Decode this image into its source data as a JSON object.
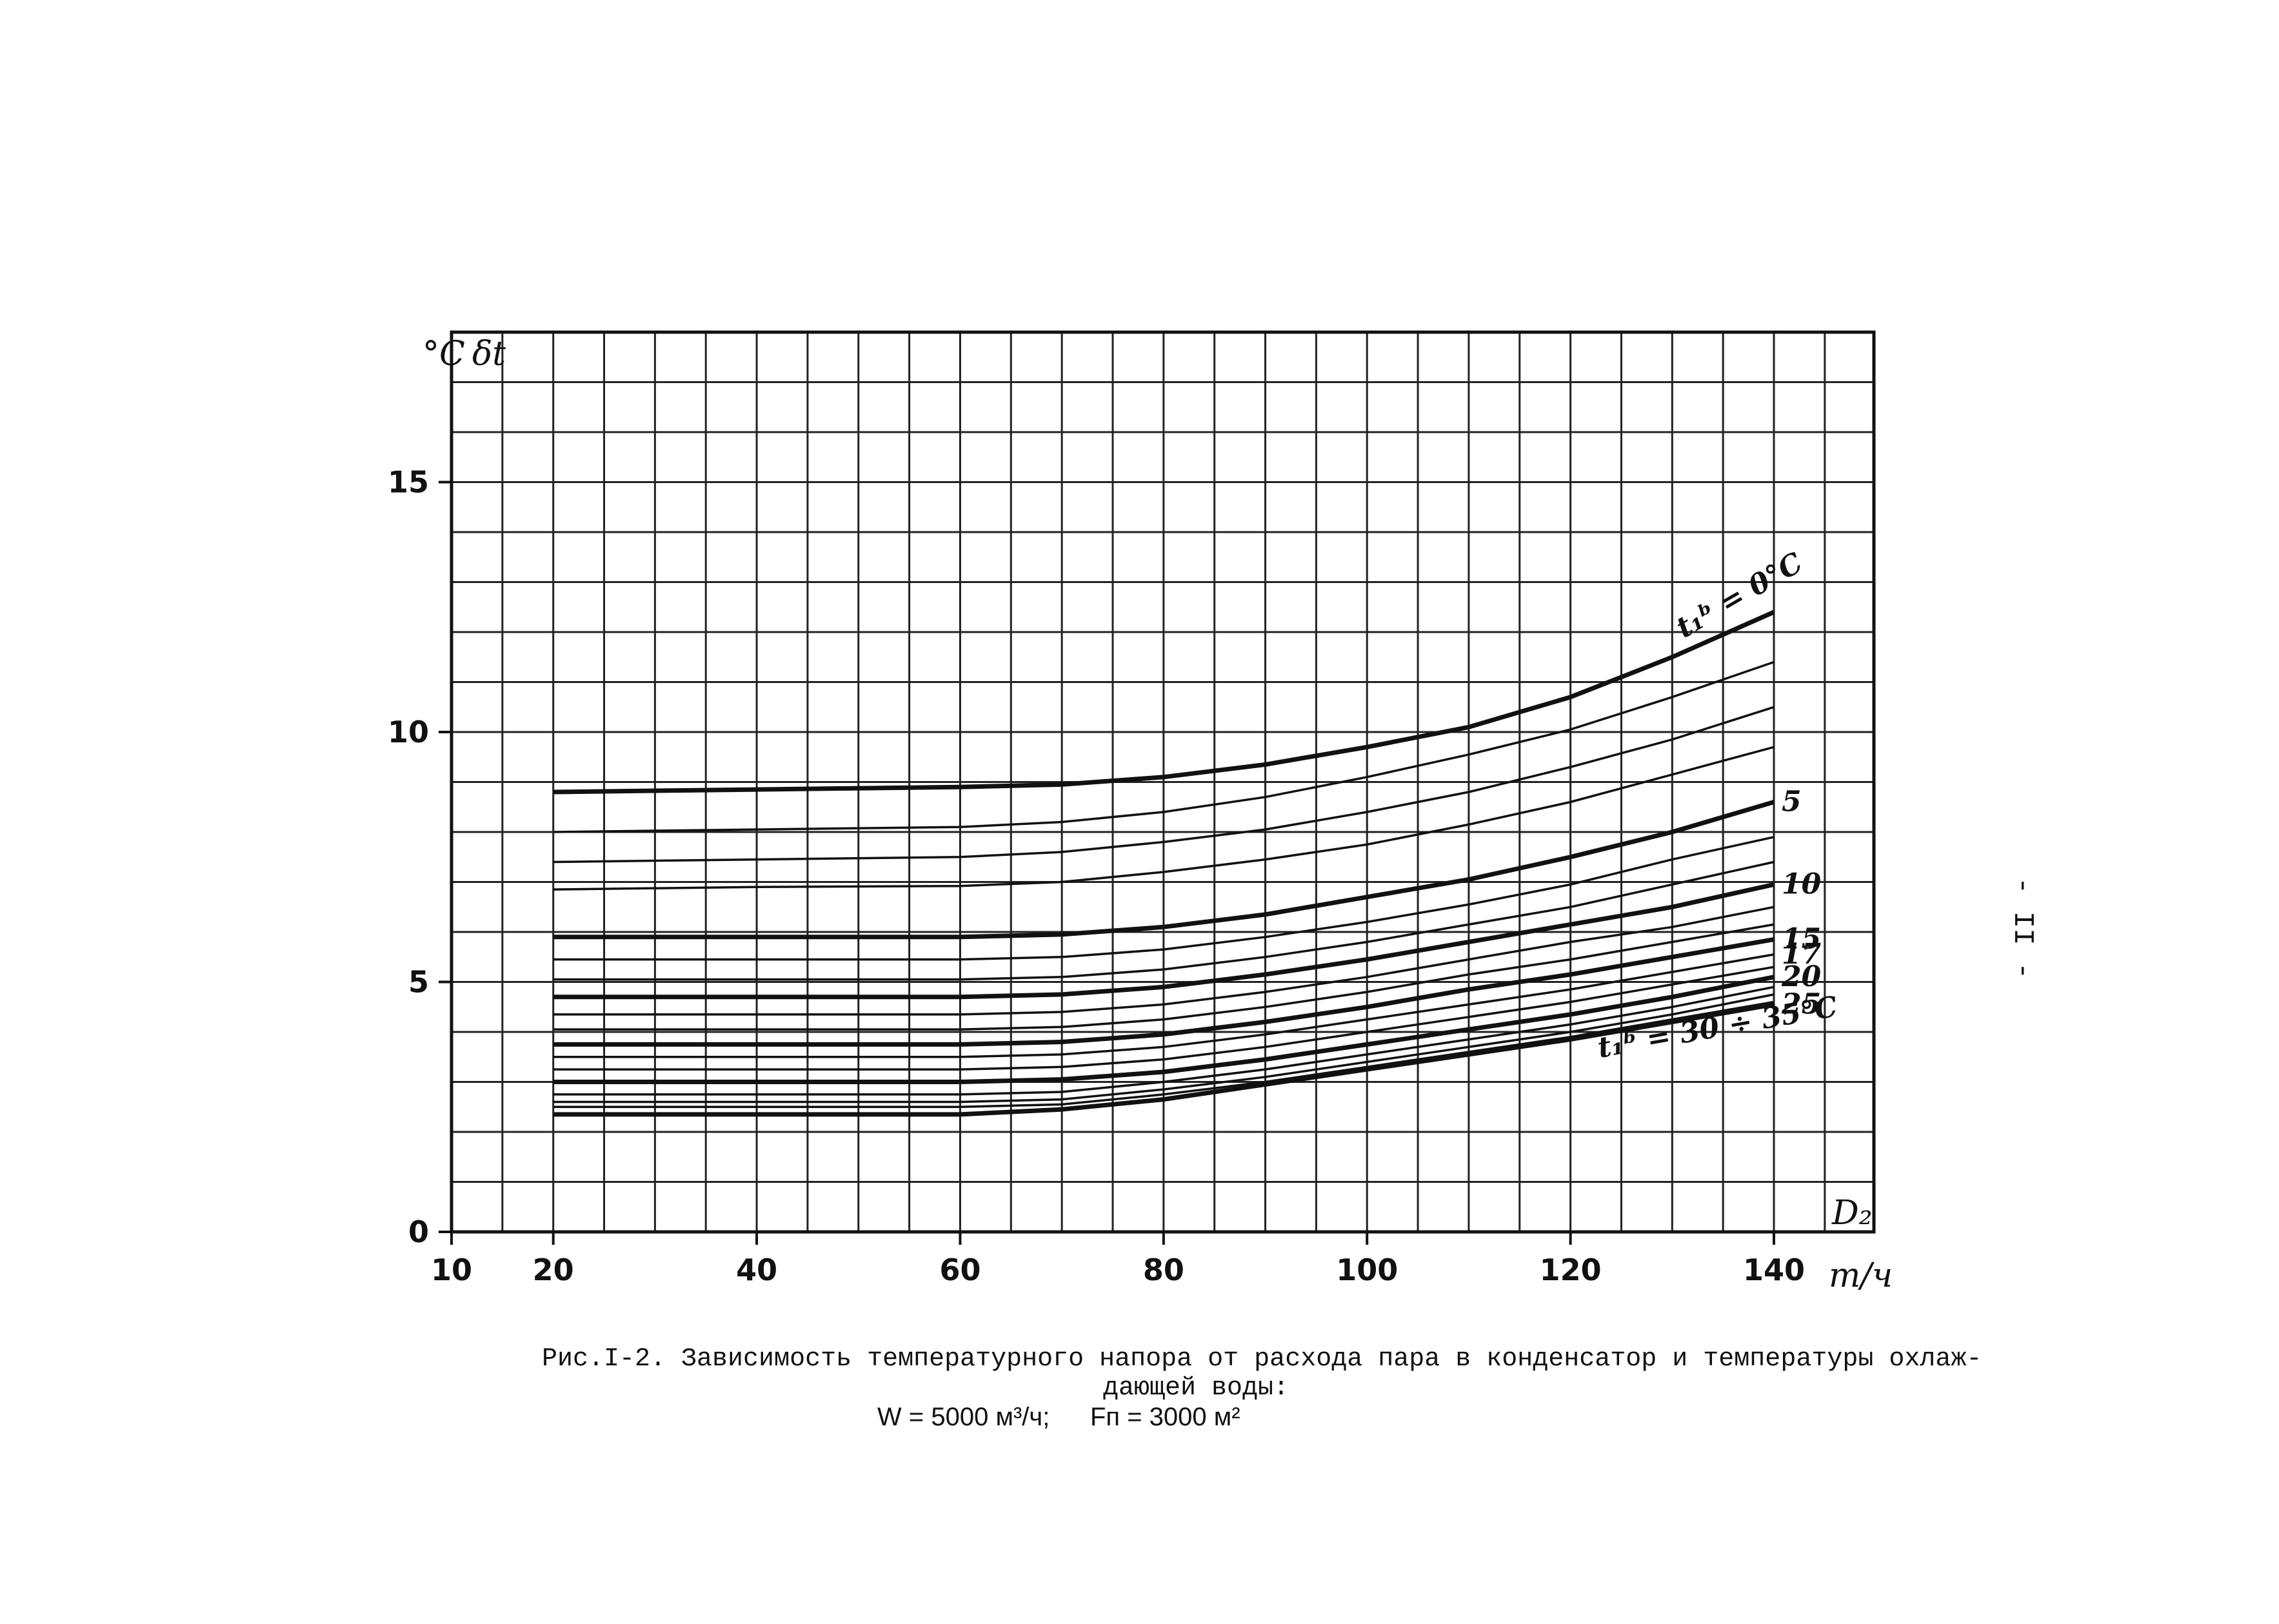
{
  "chart_data": {
    "type": "line",
    "y_unit": "°C",
    "ylabel": "δt",
    "xlabel": "D₂",
    "x_unit": "т/ч",
    "xlim": [
      10,
      140
    ],
    "ylim": [
      0,
      17.5
    ],
    "x_ticks": [
      10,
      20,
      40,
      60,
      80,
      100,
      120,
      140
    ],
    "y_ticks": [
      0,
      5,
      10,
      15
    ],
    "x_tick_labels": [
      "10",
      "20",
      "40",
      "60",
      "80",
      "100",
      "120",
      "140"
    ],
    "y_tick_labels": [
      "0",
      "5",
      "10",
      "15"
    ],
    "grid": true,
    "x": [
      20,
      40,
      60,
      70,
      80,
      90,
      100,
      110,
      120,
      130,
      140
    ],
    "series": [
      {
        "name": "t₁ᵇ = 0°C",
        "values": [
          8.8,
          8.85,
          8.9,
          8.95,
          9.1,
          9.35,
          9.7,
          10.1,
          10.7,
          11.5,
          12.4
        ],
        "bold": true
      },
      {
        "name": "",
        "values": [
          8.0,
          8.05,
          8.1,
          8.2,
          8.4,
          8.7,
          9.1,
          9.55,
          10.05,
          10.7,
          11.4
        ],
        "bold": false
      },
      {
        "name": "",
        "values": [
          7.4,
          7.45,
          7.5,
          7.6,
          7.8,
          8.05,
          8.4,
          8.8,
          9.3,
          9.85,
          10.5
        ],
        "bold": false
      },
      {
        "name": "",
        "values": [
          6.85,
          6.9,
          6.92,
          7.0,
          7.2,
          7.45,
          7.75,
          8.15,
          8.6,
          9.15,
          9.7
        ],
        "bold": false
      },
      {
        "name": "5",
        "values": [
          5.9,
          5.9,
          5.9,
          5.95,
          6.1,
          6.35,
          6.7,
          7.05,
          7.5,
          8.0,
          8.6
        ],
        "bold": true
      },
      {
        "name": "",
        "values": [
          5.45,
          5.45,
          5.45,
          5.5,
          5.65,
          5.9,
          6.2,
          6.55,
          6.95,
          7.45,
          7.9
        ],
        "bold": false
      },
      {
        "name": "",
        "values": [
          5.05,
          5.05,
          5.05,
          5.1,
          5.25,
          5.5,
          5.8,
          6.15,
          6.5,
          6.95,
          7.4
        ],
        "bold": false
      },
      {
        "name": "10",
        "values": [
          4.7,
          4.7,
          4.7,
          4.75,
          4.9,
          5.15,
          5.45,
          5.8,
          6.15,
          6.5,
          6.95
        ],
        "bold": true
      },
      {
        "name": "",
        "values": [
          4.35,
          4.35,
          4.35,
          4.4,
          4.55,
          4.8,
          5.1,
          5.45,
          5.8,
          6.1,
          6.5
        ],
        "bold": false
      },
      {
        "name": "",
        "values": [
          4.05,
          4.05,
          4.05,
          4.1,
          4.25,
          4.5,
          4.8,
          5.15,
          5.45,
          5.8,
          6.15
        ],
        "bold": false
      },
      {
        "name": "15",
        "values": [
          3.75,
          3.75,
          3.75,
          3.8,
          3.95,
          4.2,
          4.5,
          4.85,
          5.15,
          5.5,
          5.85
        ],
        "bold": true
      },
      {
        "name": "17",
        "values": [
          3.5,
          3.5,
          3.5,
          3.55,
          3.7,
          3.95,
          4.25,
          4.55,
          4.85,
          5.2,
          5.55
        ],
        "bold": false
      },
      {
        "name": "",
        "values": [
          3.25,
          3.25,
          3.25,
          3.3,
          3.45,
          3.7,
          4.0,
          4.3,
          4.6,
          4.95,
          5.3
        ],
        "bold": false
      },
      {
        "name": "20",
        "values": [
          3.0,
          3.0,
          3.0,
          3.05,
          3.2,
          3.45,
          3.75,
          4.05,
          4.35,
          4.7,
          5.1
        ],
        "bold": true
      },
      {
        "name": "",
        "values": [
          2.75,
          2.75,
          2.75,
          2.8,
          3.0,
          3.25,
          3.55,
          3.85,
          4.15,
          4.5,
          4.9
        ],
        "bold": false
      },
      {
        "name": "",
        "values": [
          2.6,
          2.6,
          2.6,
          2.65,
          2.85,
          3.1,
          3.4,
          3.7,
          4.0,
          4.35,
          4.75
        ],
        "bold": false
      },
      {
        "name": "",
        "values": [
          2.5,
          2.5,
          2.5,
          2.55,
          2.75,
          3.0,
          3.3,
          3.6,
          3.9,
          4.25,
          4.6
        ],
        "bold": false
      },
      {
        "name": "25",
        "values": [
          2.35,
          2.35,
          2.35,
          2.45,
          2.65,
          2.95,
          3.25,
          3.55,
          3.85,
          4.2,
          4.55
        ],
        "bold": true
      }
    ],
    "annotations": [
      "t₁ᵇ = 0°C",
      "t₁ᵇ = 30 ÷ 35°C"
    ]
  },
  "caption": {
    "line1": "Рис.I-2. Зависимость температурного напора от расхода пара в конденсатор и температуры охлаж-",
    "line2": "дающей воды:",
    "formula_w": "W = 5000 м³/ч;",
    "formula_f": "Fп = 3000 м²"
  },
  "page_number": "- II -"
}
